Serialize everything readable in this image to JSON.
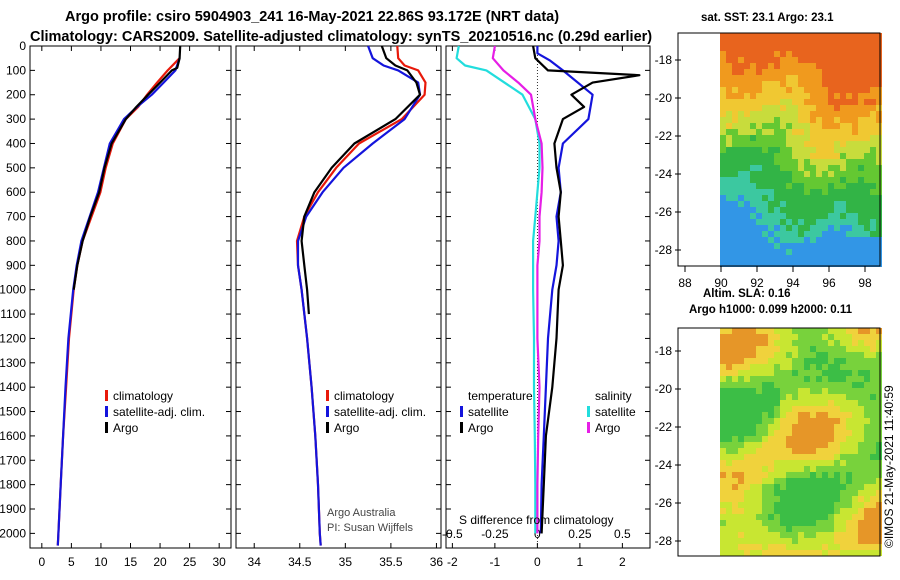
{
  "header": {
    "line1": "Argo profile: csiro 5904903_241 16-May-2021 22.86S 93.172E (NRT data)",
    "line2": "Climatology: CARS2009. Satellite-adjusted climatology: synTS_20210516.nc (0.29d earlier)"
  },
  "colors": {
    "climatology": "#e8190a",
    "satellite": "#1414dc",
    "argo": "#000000",
    "sat_temp_diff": "#22dddd",
    "argo_sal_diff": "#e61ee6"
  },
  "legend": {
    "climatology": "climatology",
    "satellite_adj": "satellite-adj. clim.",
    "argo": "Argo",
    "temperature": "temperature",
    "salinity": "salinity",
    "satellite": "satellite"
  },
  "credits": {
    "line1": "Argo Australia",
    "line2": "PI: Susan Wijffels"
  },
  "diff_panel_title": "S difference from climatology",
  "timestamp": "©IMOS 21-May-2021 11:40:59",
  "sst_map": {
    "title": "sat. SST: 23.1 Argo: 23.1",
    "lon_ticks": [
      "88",
      "90",
      "92",
      "94",
      "96",
      "98"
    ],
    "lat_ticks": [
      "-18",
      "-20",
      "-22",
      "-24",
      "-26",
      "-28"
    ]
  },
  "sla_map": {
    "title_line1": "Altim. SLA: 0.16",
    "title_line2": "Argo h1000: 0.099 h2000: 0.11",
    "lat_ticks": [
      "-18",
      "-20",
      "-22",
      "-24",
      "-26",
      "-28"
    ]
  },
  "chart_data": [
    {
      "type": "line",
      "panel": "temperature",
      "xticks": [
        "0",
        "5",
        "10",
        "15",
        "20",
        "25",
        "30"
      ],
      "xlim": [
        -2,
        32
      ],
      "ylim": [
        2060,
        0
      ],
      "yticks": [
        "0",
        "100",
        "200",
        "300",
        "400",
        "500",
        "600",
        "700",
        "800",
        "900",
        "1000",
        "1100",
        "1200",
        "1300",
        "1400",
        "1500",
        "1600",
        "1700",
        "1800",
        "1900",
        "2000"
      ],
      "series": [
        {
          "name": "climatology",
          "depth": [
            50,
            100,
            150,
            200,
            250,
            300,
            400,
            500,
            600,
            700,
            800,
            900,
            1000,
            1200,
            1400,
            1600,
            1800,
            2000,
            2050
          ],
          "values": [
            23.3,
            21.3,
            19.5,
            17.8,
            16.3,
            14.2,
            12.0,
            10.8,
            9.9,
            8.4,
            6.9,
            6.0,
            5.4,
            4.6,
            4.1,
            3.6,
            3.2,
            2.8,
            2.7
          ]
        },
        {
          "name": "satellite-adj. clim.",
          "depth": [
            50,
            100,
            150,
            200,
            250,
            300,
            400,
            500,
            600,
            700,
            800,
            900,
            1000,
            1200,
            1400,
            1600,
            1800,
            2000,
            2050
          ],
          "values": [
            23.3,
            22.6,
            20.6,
            18.6,
            16.1,
            13.9,
            11.5,
            10.5,
            9.5,
            8.1,
            6.7,
            5.9,
            5.3,
            4.5,
            4.0,
            3.6,
            3.2,
            2.8,
            2.7
          ]
        },
        {
          "name": "Argo",
          "depth": [
            0,
            50,
            90,
            100,
            150,
            200,
            250,
            300,
            400,
            500,
            600,
            700,
            800,
            900,
            1000
          ],
          "values": [
            23.4,
            23.3,
            22.9,
            22.0,
            20.0,
            18.0,
            16.0,
            14.2,
            11.8,
            10.6,
            9.7,
            8.2,
            6.9,
            6.0,
            5.4
          ]
        }
      ]
    },
    {
      "type": "line",
      "panel": "salinity",
      "xticks": [
        "34",
        "34.5",
        "35",
        "35.5",
        "36"
      ],
      "xlim": [
        33.8,
        36.05
      ],
      "ylim": [
        2060,
        0
      ],
      "series": [
        {
          "name": "climatology",
          "depth": [
            0,
            50,
            80,
            100,
            150,
            200,
            300,
            400,
            500,
            600,
            700,
            800,
            900,
            1000,
            1200,
            1400,
            1600,
            1800,
            2000,
            2050
          ],
          "values": [
            35.57,
            35.58,
            35.65,
            35.8,
            35.88,
            35.87,
            35.62,
            35.15,
            34.9,
            34.7,
            34.55,
            34.47,
            34.48,
            34.52,
            34.58,
            34.63,
            34.67,
            34.7,
            34.72,
            34.73
          ]
        },
        {
          "name": "satellite-adj. clim.",
          "depth": [
            0,
            50,
            80,
            100,
            150,
            200,
            300,
            400,
            500,
            600,
            700,
            800,
            900,
            1000,
            1200,
            1400,
            1600,
            1800,
            2000,
            2050
          ],
          "values": [
            35.25,
            35.3,
            35.42,
            35.58,
            35.8,
            35.82,
            35.65,
            35.3,
            34.98,
            34.75,
            34.57,
            34.48,
            34.48,
            34.52,
            34.58,
            34.63,
            34.67,
            34.7,
            34.72,
            34.73
          ]
        },
        {
          "name": "Argo",
          "depth": [
            0,
            50,
            80,
            100,
            150,
            200,
            300,
            400,
            500,
            600,
            700,
            800,
            900,
            1000,
            1100
          ],
          "values": [
            35.4,
            35.45,
            35.55,
            35.68,
            35.78,
            35.82,
            35.55,
            35.1,
            34.85,
            34.66,
            34.55,
            34.52,
            34.55,
            34.58,
            34.6
          ]
        }
      ]
    },
    {
      "type": "line",
      "panel": "S difference from climatology",
      "xticks": [
        "-2",
        "-1",
        "0",
        "1",
        "2"
      ],
      "xticks_minor": [
        "-0.5",
        "-0.25",
        "0",
        "0.25",
        "0.5"
      ],
      "xlim": [
        -2.15,
        2.65
      ],
      "ylim": [
        2060,
        0
      ],
      "series": [
        {
          "name": "temperature satellite",
          "depth": [
            0,
            30,
            60,
            100,
            200,
            300,
            400,
            500,
            600,
            700,
            800,
            900,
            1000,
            1200,
            1400,
            1600,
            1800,
            2000
          ],
          "values": [
            0.0,
            0.0,
            0.3,
            0.6,
            1.3,
            1.2,
            0.6,
            0.5,
            0.55,
            0.45,
            0.5,
            0.45,
            0.35,
            0.25,
            0.2,
            0.15,
            0.1,
            0.08
          ]
        },
        {
          "name": "temperature Argo",
          "depth": [
            0,
            50,
            100,
            120,
            150,
            200,
            250,
            300,
            400,
            500,
            600,
            700,
            800,
            900,
            1000,
            1200,
            1400,
            1600,
            1800,
            2000
          ],
          "values": [
            -0.1,
            -0.05,
            0.25,
            2.4,
            1.3,
            0.8,
            1.1,
            0.6,
            0.4,
            0.45,
            0.55,
            0.5,
            0.55,
            0.6,
            0.5,
            0.45,
            0.35,
            0.2,
            0.15,
            0.1
          ]
        },
        {
          "name": "salinity satellite",
          "depth": [
            0,
            50,
            80,
            100,
            200,
            300,
            400,
            500,
            600,
            700,
            800,
            900,
            1000,
            1200,
            1400,
            1600,
            1800,
            2000
          ],
          "values": [
            -1.85,
            -1.9,
            -1.7,
            -1.2,
            -0.35,
            -0.05,
            0.05,
            0.05,
            0.0,
            -0.05,
            -0.1,
            -0.1,
            -0.1,
            -0.08,
            -0.08,
            -0.06,
            -0.05,
            -0.05
          ]
        },
        {
          "name": "salinity Argo",
          "depth": [
            0,
            50,
            100,
            150,
            200,
            300,
            400,
            500,
            600,
            700,
            800,
            900,
            1000,
            1200,
            1400,
            1600,
            1800,
            2000
          ],
          "values": [
            -1.0,
            -1.05,
            -0.8,
            -0.45,
            -0.15,
            -0.05,
            0.1,
            0.12,
            0.1,
            0.05,
            0.05,
            0.0,
            0.0,
            0.0,
            0.05,
            0.02,
            0.0,
            0.0
          ]
        }
      ]
    }
  ]
}
